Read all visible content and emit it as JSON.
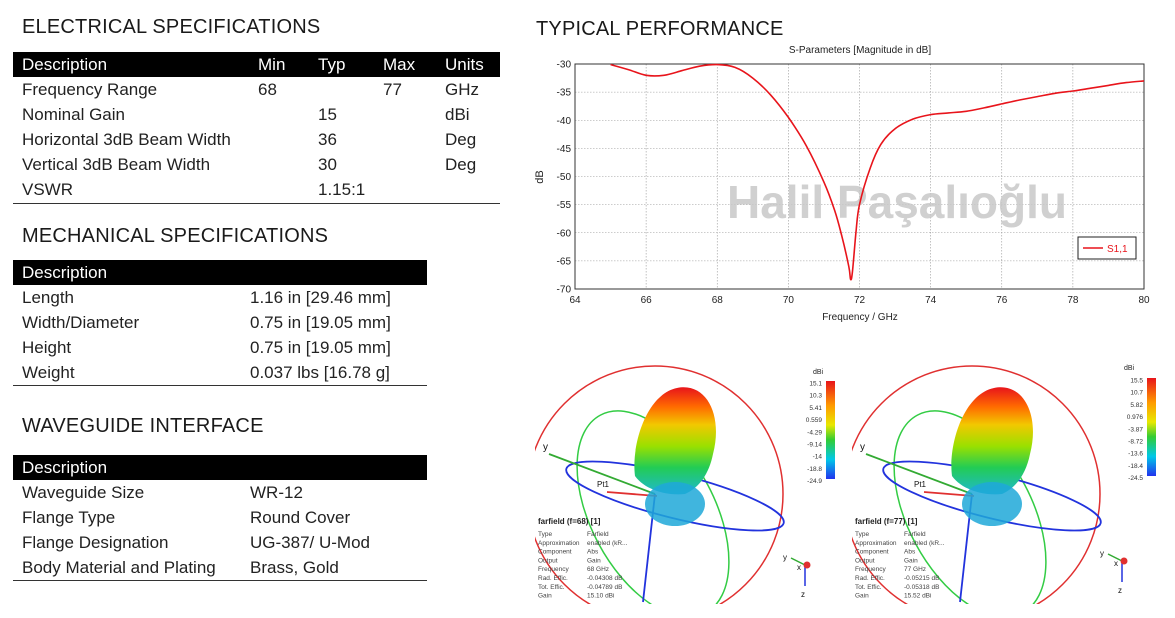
{
  "electrical": {
    "title": "ELECTRICAL SPECIFICATIONS",
    "headers": [
      "Description",
      "Min",
      "Typ",
      "Max",
      "Units"
    ],
    "rows": [
      [
        "Frequency Range",
        "68",
        "",
        "77",
        "GHz"
      ],
      [
        "Nominal Gain",
        "",
        "15",
        "",
        "dBi"
      ],
      [
        "Horizontal 3dB Beam Width",
        "",
        "36",
        "",
        "Deg"
      ],
      [
        "Vertical 3dB Beam Width",
        "",
        "30",
        "",
        "Deg"
      ],
      [
        "VSWR",
        "",
        "1.15:1",
        "",
        ""
      ]
    ]
  },
  "mechanical": {
    "title": "MECHANICAL SPECIFICATIONS",
    "header": "Description",
    "rows": [
      [
        "Length",
        "1.16 in [29.46 mm]"
      ],
      [
        "Width/Diameter",
        "0.75 in [19.05 mm]"
      ],
      [
        "Height",
        "0.75 in [19.05 mm]"
      ],
      [
        "Weight",
        "0.037 lbs [16.78 g]"
      ]
    ]
  },
  "waveguide": {
    "title": "WAVEGUIDE INTERFACE",
    "header": "Description",
    "rows": [
      [
        "Waveguide Size",
        "WR-12"
      ],
      [
        "Flange Type",
        "Round Cover"
      ],
      [
        "Flange Designation",
        "UG-387/ U-Mod"
      ],
      [
        "Body Material and Plating",
        "Brass, Gold"
      ]
    ]
  },
  "performance": {
    "title": "TYPICAL PERFORMANCE",
    "watermark": "Halil Paşalıoğlu"
  },
  "chart_data": {
    "type": "line",
    "title": "S-Parameters [Magnitude in dB]",
    "xlabel": "Frequency / GHz",
    "ylabel": "dB",
    "xlim": [
      64,
      80
    ],
    "ylim": [
      -70,
      -30
    ],
    "xticks": [
      64,
      66,
      68,
      70,
      72,
      74,
      76,
      78,
      80
    ],
    "yticks": [
      -30,
      -35,
      -40,
      -45,
      -50,
      -55,
      -60,
      -65,
      -70
    ],
    "grid": true,
    "legend_position": "right",
    "series": [
      {
        "name": "S1,1",
        "color": "#e8141b",
        "x": [
          65,
          65.5,
          66,
          66.5,
          67,
          67.5,
          68,
          68.5,
          69,
          69.5,
          70,
          70.5,
          71,
          71.3,
          71.5,
          71.7,
          71.75,
          71.8,
          71.9,
          72,
          72.3,
          72.6,
          73,
          73.5,
          74,
          74.5,
          75,
          75.5,
          76,
          76.5,
          77,
          77.5,
          78,
          78.5,
          79,
          79.5,
          80
        ],
        "values": [
          -30.1,
          -31,
          -32,
          -32,
          -31.2,
          -30.4,
          -30.1,
          -30.6,
          -32.5,
          -35.5,
          -39.5,
          -44.5,
          -51,
          -56,
          -60.5,
          -66,
          -68.3,
          -67,
          -60,
          -55,
          -48.5,
          -44.3,
          -41.5,
          -39.8,
          -39,
          -38.7,
          -38.4,
          -37.8,
          -37.1,
          -36.4,
          -35.8,
          -35.2,
          -34.8,
          -34.3,
          -33.8,
          -33.3,
          -33
        ]
      }
    ]
  },
  "farfield_left": {
    "title": "farfield (f=68) [1]",
    "props": [
      [
        "Type",
        "Farfield"
      ],
      [
        "Approximation",
        "enabled (kR..."
      ],
      [
        "Component",
        "Abs"
      ],
      [
        "Output",
        "Gain"
      ],
      [
        "Frequency",
        "68 GHz"
      ],
      [
        "Rad. Effic.",
        "-0.04308 dB"
      ],
      [
        "Tot. Effic.",
        "-0.04789 dB"
      ],
      [
        "Gain",
        "15.10 dBi"
      ]
    ],
    "unit": "dBi",
    "scale": [
      "15.1",
      "10.3",
      "5.41",
      "0.559",
      "-4.29",
      "-9.14",
      "-14",
      "-18.8",
      "-24.9"
    ],
    "port": "Pt1",
    "axes": [
      "y",
      "x",
      "z"
    ]
  },
  "farfield_right": {
    "title": "farfield (f=77) [1]",
    "props": [
      [
        "Type",
        "Farfield"
      ],
      [
        "Approximation",
        "enabled (kR..."
      ],
      [
        "Component",
        "Abs"
      ],
      [
        "Output",
        "Gain"
      ],
      [
        "Frequency",
        "77 GHz"
      ],
      [
        "Rad. Effic.",
        "-0.05215 dB"
      ],
      [
        "Tot. Effic.",
        "-0.05318 dB"
      ],
      [
        "Gain",
        "15.52 dBi"
      ]
    ],
    "unit": "dBi",
    "scale": [
      "15.5",
      "10.7",
      "5.82",
      "0.976",
      "-3.87",
      "-8.72",
      "-13.6",
      "-18.4",
      "-24.5"
    ],
    "port": "Pt1",
    "axes": [
      "y",
      "x",
      "z"
    ]
  }
}
